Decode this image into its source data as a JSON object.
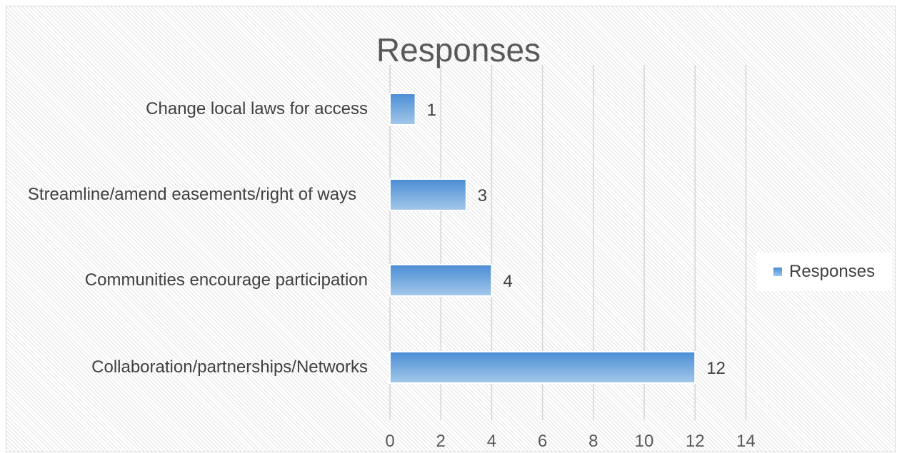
{
  "chart_data": {
    "type": "bar",
    "orientation": "horizontal",
    "title": "Responses",
    "categories": [
      "Change local laws for access",
      "Streamline/amend easements/right of ways",
      "Communities encourage participation",
      "Collaboration/partnerships/Networks"
    ],
    "series": [
      {
        "name": "Responses",
        "values": [
          1,
          3,
          4,
          12
        ]
      }
    ],
    "xlim": [
      0,
      14
    ],
    "xticks": [
      0,
      2,
      4,
      6,
      8,
      10,
      12,
      14
    ],
    "grid": true,
    "legend_position": "right",
    "bar_color": "#5b9bd5"
  }
}
